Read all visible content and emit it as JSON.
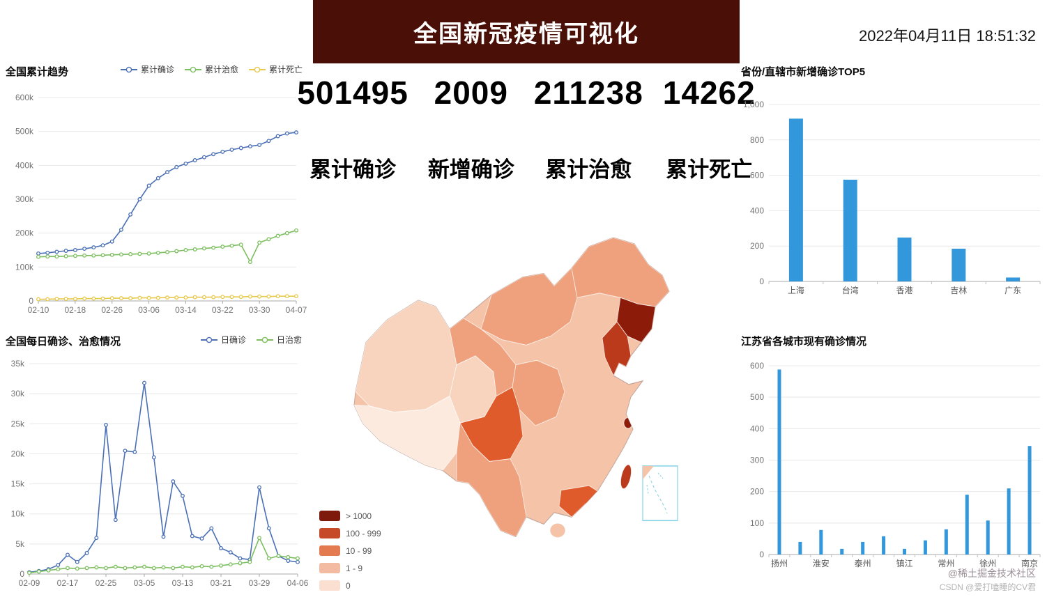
{
  "header": {
    "title": "全国新冠疫情可视化",
    "datetime": "2022年04月11日 18:51:32",
    "banner_color": "#4a0f06"
  },
  "stats": {
    "items": [
      {
        "value": "501495",
        "label": "累计确诊"
      },
      {
        "value": "2009",
        "label": "新增确诊"
      },
      {
        "value": "211238",
        "label": "累计治愈"
      },
      {
        "value": "14262",
        "label": "累计死亡"
      }
    ]
  },
  "chart_data": [
    {
      "id": "cumulative",
      "type": "line",
      "title": "全国累计趋势",
      "value_unit": "thousands",
      "ymax": 600,
      "yticks": [
        {
          "v": 0,
          "label": "0"
        },
        {
          "v": 100,
          "label": "100k"
        },
        {
          "v": 200,
          "label": "200k"
        },
        {
          "v": 300,
          "label": "300k"
        },
        {
          "v": 400,
          "label": "400k"
        },
        {
          "v": 500,
          "label": "500k"
        },
        {
          "v": 600,
          "label": "600k"
        }
      ],
      "xlabels": [
        "02-10",
        "02-18",
        "02-26",
        "03-06",
        "03-14",
        "03-22",
        "03-30",
        "04-07"
      ],
      "series": [
        {
          "name": "累计确诊",
          "color": "#4a6fb5",
          "values": [
            140,
            142,
            145,
            148,
            150,
            154,
            158,
            164,
            175,
            210,
            255,
            300,
            340,
            362,
            380,
            395,
            405,
            415,
            424,
            433,
            440,
            446,
            451,
            456,
            460,
            472,
            486,
            494,
            497
          ]
        },
        {
          "name": "累计治愈",
          "color": "#7cbf5f",
          "values": [
            130,
            131,
            131,
            132,
            133,
            134,
            134,
            135,
            136,
            137,
            138,
            139,
            140,
            142,
            144,
            147,
            150,
            152,
            155,
            157,
            160,
            163,
            166,
            115,
            172,
            182,
            192,
            200,
            208
          ]
        },
        {
          "name": "累计死亡",
          "color": "#e9c94a",
          "values": [
            5,
            5,
            6,
            6,
            6,
            7,
            7,
            7,
            8,
            8,
            8,
            9,
            9,
            9,
            10,
            10,
            10,
            11,
            11,
            11,
            12,
            12,
            12,
            13,
            13,
            13,
            14,
            14,
            14
          ]
        }
      ]
    },
    {
      "id": "daily",
      "type": "line",
      "title": "全国每日确诊、治愈情况",
      "value_unit": "thousands",
      "ymax": 35,
      "yticks": [
        {
          "v": 0,
          "label": "0"
        },
        {
          "v": 5,
          "label": "5k"
        },
        {
          "v": 10,
          "label": "10k"
        },
        {
          "v": 15,
          "label": "15k"
        },
        {
          "v": 20,
          "label": "20k"
        },
        {
          "v": 25,
          "label": "25k"
        },
        {
          "v": 30,
          "label": "30k"
        },
        {
          "v": 35,
          "label": "35k"
        }
      ],
      "xlabels": [
        "02-09",
        "02-17",
        "02-25",
        "03-05",
        "03-13",
        "03-21",
        "03-29",
        "04-06"
      ],
      "series": [
        {
          "name": "日确诊",
          "color": "#4a6fb5",
          "values": [
            0.3,
            0.5,
            0.8,
            1.5,
            3.2,
            2.0,
            3.5,
            6.0,
            24.8,
            9.0,
            20.5,
            20.3,
            31.8,
            19.4,
            6.2,
            15.4,
            13.0,
            6.3,
            5.9,
            7.6,
            4.3,
            3.6,
            2.6,
            2.4,
            14.4,
            7.6,
            3.0,
            2.2,
            2.0
          ]
        },
        {
          "name": "日治愈",
          "color": "#7cbf5f",
          "values": [
            0.2,
            0.4,
            0.6,
            0.8,
            1.0,
            0.9,
            1.0,
            1.1,
            1.0,
            1.2,
            1.0,
            1.1,
            1.2,
            1.0,
            1.1,
            1.0,
            1.2,
            1.1,
            1.3,
            1.2,
            1.4,
            1.6,
            1.8,
            2.0,
            6.0,
            2.6,
            3.0,
            2.8,
            2.6
          ]
        }
      ]
    },
    {
      "id": "top5",
      "type": "bar",
      "title": "省份/直辖市新增确诊TOP5",
      "ymax": 1000,
      "yticks": [
        {
          "v": 0,
          "label": "0"
        },
        {
          "v": 200,
          "label": "200"
        },
        {
          "v": 400,
          "label": "400"
        },
        {
          "v": 600,
          "label": "600"
        },
        {
          "v": 800,
          "label": "800"
        },
        {
          "v": 1000,
          "label": "1,000"
        }
      ],
      "categories": [
        "上海",
        "台湾",
        "香港",
        "吉林",
        "广东"
      ],
      "values": [
        920,
        575,
        248,
        185,
        22
      ],
      "bar_color": "#3398db"
    },
    {
      "id": "jiangsu",
      "type": "bar",
      "title": "江苏省各城市现有确诊情况",
      "ymax": 600,
      "yticks": [
        {
          "v": 0,
          "label": "0"
        },
        {
          "v": 100,
          "label": "100"
        },
        {
          "v": 200,
          "label": "200"
        },
        {
          "v": 300,
          "label": "300"
        },
        {
          "v": 400,
          "label": "400"
        },
        {
          "v": 500,
          "label": "500"
        },
        {
          "v": 600,
          "label": "600"
        }
      ],
      "categories": [
        "扬州",
        "",
        "淮安",
        "",
        "泰州",
        "",
        "镇江",
        "",
        "常州",
        "",
        "徐州",
        "",
        "南京"
      ],
      "values": [
        588,
        40,
        78,
        18,
        40,
        58,
        18,
        45,
        80,
        190,
        108,
        210,
        345
      ],
      "bar_color": "#3398db"
    }
  ],
  "map": {
    "legend": [
      {
        "label": "> 1000",
        "color": "#7e1a0c"
      },
      {
        "label": "100 - 999",
        "color": "#c64a28"
      },
      {
        "label": "10 - 99",
        "color": "#e37a50"
      },
      {
        "label": "1 - 9",
        "color": "#f3bba2"
      },
      {
        "label": "0",
        "color": "#fbdfd0"
      }
    ],
    "palette": {
      "level0": "#fceade",
      "level1": "#f8d4bf",
      "level2": "#f5c3a8",
      "level3": "#efa17d",
      "level4": "#df5b2b",
      "level5": "#bb3a1c",
      "level6": "#8c1b09"
    },
    "regions": [
      {
        "id": "china-base",
        "level": "level2"
      },
      {
        "id": "xinjiang",
        "level": "level1"
      },
      {
        "id": "tibet",
        "level": "level0"
      },
      {
        "id": "qinghai",
        "level": "level1"
      },
      {
        "id": "gansu-shaanxi",
        "level": "level3"
      },
      {
        "id": "inner-mongolia",
        "level": "level3"
      },
      {
        "id": "heilongjiang",
        "level": "level3"
      },
      {
        "id": "jilin",
        "level": "level6"
      },
      {
        "id": "liaoning",
        "level": "level5"
      },
      {
        "id": "central-plain",
        "level": "level3"
      },
      {
        "id": "sichuan",
        "level": "level4"
      },
      {
        "id": "yunnan",
        "level": "level3"
      },
      {
        "id": "guangdong",
        "level": "level4"
      },
      {
        "id": "shanghai",
        "level": "level6"
      },
      {
        "id": "taiwan",
        "level": "level5"
      },
      {
        "id": "hainan",
        "level": "level2"
      }
    ],
    "inset_border_color": "#85d3e6"
  },
  "watermarks": {
    "line1": "@稀土掘金技术社区",
    "line2": "CSDN @爱打嗑睡的CV君"
  }
}
